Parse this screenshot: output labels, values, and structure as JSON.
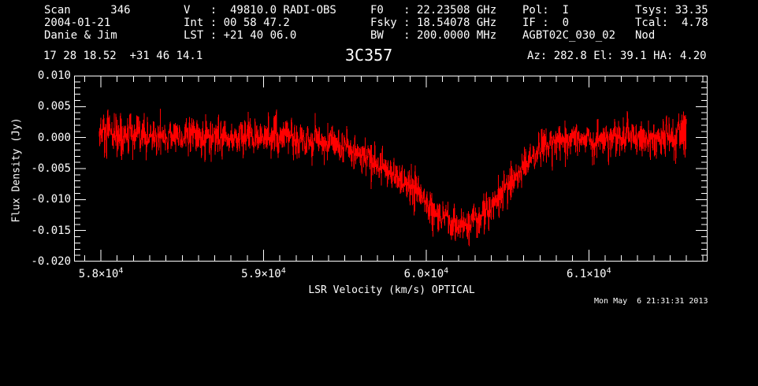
{
  "header": {
    "col1": [
      "Scan      346",
      "2004-01-21",
      "Danie & Jim"
    ],
    "col2": [
      "V   :  49810.0 RADI-OBS",
      "Int : 00 58 47.2",
      "LST : +21 40 06.0"
    ],
    "col3": [
      "F0   : 22.23508 GHz",
      "Fsky : 18.54078 GHz",
      "BW   : 200.0000 MHz"
    ],
    "col4": [
      "Pol:  I",
      "IF :  0",
      "AGBT02C_030_02"
    ],
    "col5": [
      "Tsys: 33.35",
      "Tcal:  4.78",
      "Nod"
    ],
    "coords": "17 28 18.52  +31 46 14.1",
    "source": "3C357",
    "pointing": "Az: 282.8 El: 39.1 HA: 4.20"
  },
  "footer": {
    "timestamp": "Mon May  6 21:31:31 2013"
  },
  "chart_data": {
    "type": "line",
    "title": "3C357",
    "xlabel": "LSR Velocity (km/s) OPTICAL",
    "ylabel": "Flux Density (Jy)",
    "xlim": [
      57835,
      61730
    ],
    "ylim": [
      -0.02,
      0.01
    ],
    "x_major_ticks": [
      58000,
      59000,
      60000,
      61000
    ],
    "x_tick_labels": [
      {
        "base": "5.8×10",
        "exp": "4"
      },
      {
        "base": "5.9×10",
        "exp": "4"
      },
      {
        "base": "6.0×10",
        "exp": "4"
      },
      {
        "base": "6.1×10",
        "exp": "4"
      }
    ],
    "x_minor_step": 100,
    "y_major_ticks": [
      0.01,
      0.005,
      0.0,
      -0.005,
      -0.01,
      -0.015,
      -0.02
    ],
    "y_tick_labels": [
      "0.010",
      "0.005",
      "0.000",
      "-0.005",
      "-0.010",
      "-0.015",
      "-0.020"
    ],
    "y_minor_step": 0.001,
    "grid": false,
    "legend": false,
    "axis_color": "#ffffff",
    "line_color": "#ff0000",
    "background_color": "#000000",
    "series": [
      {
        "name": "spectrum",
        "x_start": 57990,
        "x_end": 61600,
        "n_points": 2000,
        "noise_sigma": 0.00148,
        "seed": 12345,
        "profile_points": [
          [
            57990,
            0.0003
          ],
          [
            58200,
            0.0
          ],
          [
            58450,
            0.0003
          ],
          [
            58700,
            -0.0002
          ],
          [
            58950,
            0.0002
          ],
          [
            59150,
            0.0
          ],
          [
            59300,
            -0.0003
          ],
          [
            59450,
            -0.0013
          ],
          [
            59600,
            -0.0028
          ],
          [
            59750,
            -0.005
          ],
          [
            59900,
            -0.0078
          ],
          [
            60000,
            -0.0105
          ],
          [
            60080,
            -0.0125
          ],
          [
            60150,
            -0.014
          ],
          [
            60230,
            -0.0144
          ],
          [
            60300,
            -0.0138
          ],
          [
            60380,
            -0.0118
          ],
          [
            60460,
            -0.0094
          ],
          [
            60540,
            -0.0066
          ],
          [
            60620,
            -0.0038
          ],
          [
            60700,
            -0.0015
          ],
          [
            60780,
            -0.0005
          ],
          [
            60900,
            -0.0001
          ],
          [
            61050,
            -0.0004
          ],
          [
            61200,
            0.0002
          ],
          [
            61380,
            -0.0003
          ],
          [
            61600,
            0.0
          ]
        ]
      }
    ]
  }
}
